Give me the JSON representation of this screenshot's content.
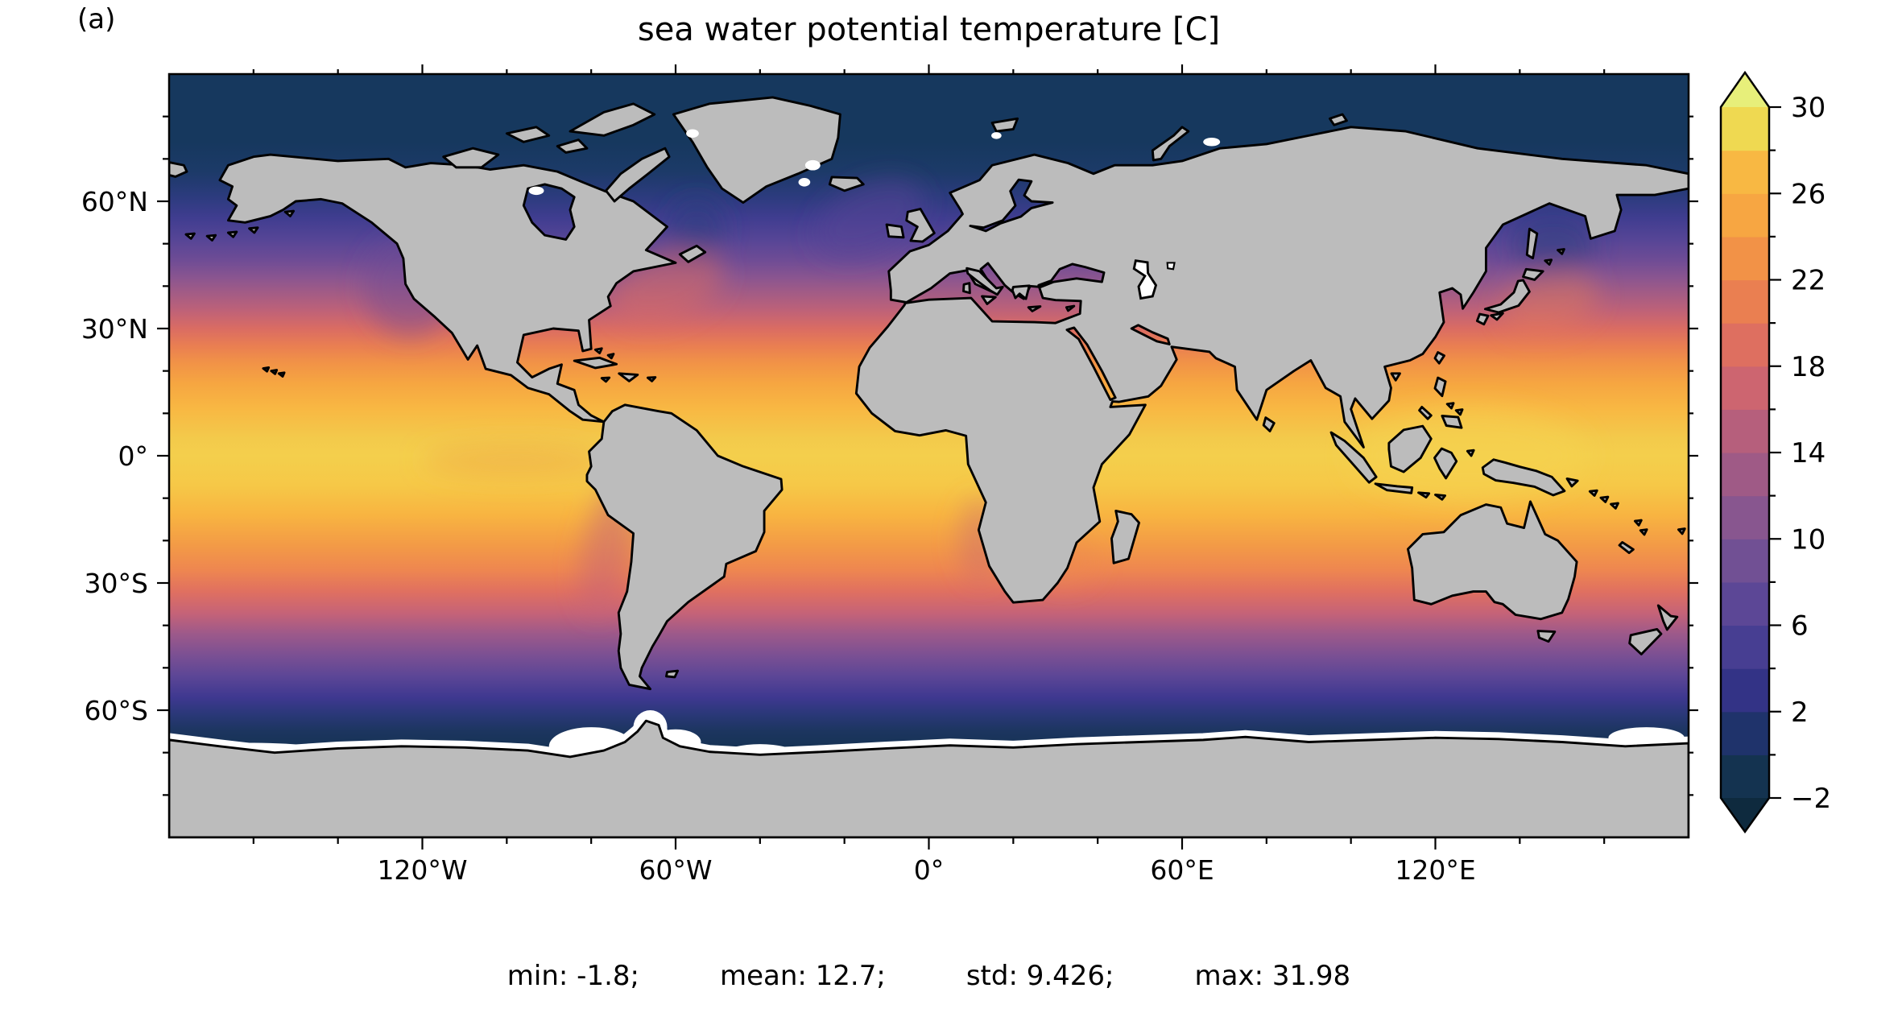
{
  "figure": {
    "panel_label": "(a)",
    "title": "sea water potential temperature [C]"
  },
  "chart_data": {
    "type": "heatmap",
    "subtype": "global-map-filled-contours",
    "projection": "equirectangular",
    "title": "sea water potential temperature [C]",
    "panel_label": "(a)",
    "units": "C",
    "stats": {
      "min": -1.8,
      "mean": 12.7,
      "std": 9.426,
      "max": 31.98
    },
    "stats_items": [
      "min: -1.8;",
      "mean: 12.7;",
      "std: 9.426;",
      "max: 31.98"
    ],
    "x_axis": {
      "range": [
        -180,
        180
      ],
      "tick_values": [
        -120,
        -60,
        0,
        60,
        120
      ],
      "tick_labels": [
        "120°W",
        "60°W",
        "0°",
        "60°E",
        "120°E"
      ],
      "minor_step": 20
    },
    "y_axis": {
      "range": [
        -90,
        90
      ],
      "tick_values": [
        60,
        30,
        0,
        -30,
        -60
      ],
      "tick_labels": [
        "60°N",
        "30°N",
        "0°",
        "30°S",
        "60°S"
      ],
      "minor_step": 10
    },
    "colorbar": {
      "min": -2,
      "max": 30,
      "major_tick_values": [
        30,
        26,
        22,
        18,
        14,
        10,
        6,
        2,
        -2
      ],
      "major_tick_labels": [
        "30",
        "26",
        "22",
        "18",
        "14",
        "10",
        "6",
        "2",
        "−2"
      ],
      "minor_step": 2,
      "band_step": 2,
      "extend": "both",
      "under_color": "#0e2a3e",
      "over_color": "#e7ef7a",
      "band_colors": [
        "#143350",
        "#1f336b",
        "#333386",
        "#473e92",
        "#5c4796",
        "#715094",
        "#88568f",
        "#9f5a86",
        "#b65f7c",
        "#cd6570",
        "#de6f60",
        "#ea7f51",
        "#f29247",
        "#f7a642",
        "#f8b843",
        "#efd951"
      ]
    },
    "map": {
      "land_color": "#bcbcbc",
      "coast_color": "#000000",
      "nodata_color": "#ffffff",
      "frame_color": "#000000",
      "ocean_zonal_profile": [
        [
          90,
          "#16385e"
        ],
        [
          74,
          "#16385e"
        ],
        [
          67,
          "#1c3a68"
        ],
        [
          61,
          "#2c3b7e"
        ],
        [
          56,
          "#403d90"
        ],
        [
          51,
          "#564596"
        ],
        [
          46,
          "#6f4c95"
        ],
        [
          42,
          "#8a5590"
        ],
        [
          38,
          "#a55c84"
        ],
        [
          34,
          "#c06277"
        ],
        [
          30,
          "#da6c63"
        ],
        [
          26,
          "#e97e52"
        ],
        [
          22,
          "#f19247"
        ],
        [
          17,
          "#f6a641"
        ],
        [
          11,
          "#f8b843"
        ],
        [
          4,
          "#f3ca4b"
        ],
        [
          0,
          "#f4cf4c"
        ],
        [
          -7,
          "#f6c847"
        ],
        [
          -14,
          "#f8b441"
        ],
        [
          -21,
          "#f39b46"
        ],
        [
          -27,
          "#ee8650"
        ],
        [
          -32,
          "#e07060"
        ],
        [
          -37,
          "#c66377"
        ],
        [
          -42,
          "#9d598a"
        ],
        [
          -47,
          "#7b5093"
        ],
        [
          -52,
          "#5c4696"
        ],
        [
          -57,
          "#3e3890"
        ],
        [
          -61,
          "#2a3878"
        ],
        [
          -65,
          "#1c355f"
        ],
        [
          -70,
          "#143251"
        ],
        [
          -90,
          "#123049"
        ]
      ]
    }
  }
}
